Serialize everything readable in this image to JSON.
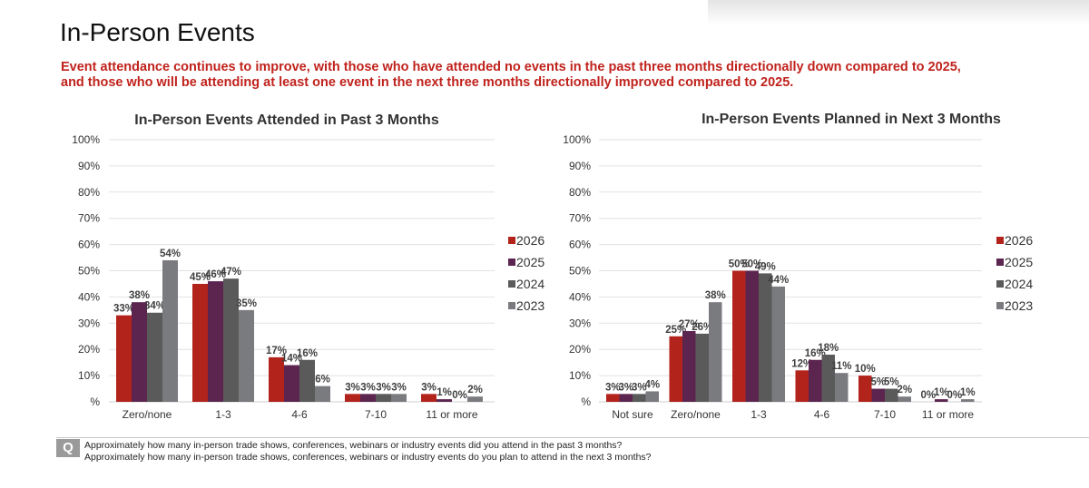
{
  "header": {
    "title": "In-Person Events",
    "subtitle_line1": "Event attendance continues to improve, with those who have attended no events in the past three months directionally down compared to 2025,",
    "subtitle_line2": "and those who will be attending at least one event in the next three months directionally improved compared to 2025."
  },
  "colors": {
    "2026": "#b2231b",
    "2025": "#5c2550",
    "2024": "#5a5a5a",
    "2023": "#7a7b7f",
    "accent": "#c0221c"
  },
  "chart_data": [
    {
      "type": "bar",
      "title": "In-Person Events Attended in Past 3 Months",
      "categories": [
        "Zero/none",
        "1-3",
        "4-6",
        "7-10",
        "11 or more"
      ],
      "series": [
        {
          "name": "2026",
          "values": [
            33,
            45,
            17,
            3,
            3
          ]
        },
        {
          "name": "2025",
          "values": [
            38,
            46,
            14,
            3,
            1
          ]
        },
        {
          "name": "2024",
          "values": [
            34,
            47,
            16,
            3,
            0
          ]
        },
        {
          "name": "2023",
          "values": [
            54,
            35,
            6,
            3,
            2
          ]
        }
      ],
      "yticks": [
        "%",
        "10%",
        "20%",
        "30%",
        "40%",
        "50%",
        "60%",
        "70%",
        "80%",
        "90%",
        "100%"
      ],
      "ylim": [
        0,
        100
      ],
      "xlabel": "",
      "ylabel": "",
      "grid": true,
      "legend": "right"
    },
    {
      "type": "bar",
      "title": "In-Person Events Planned in Next 3 Months",
      "categories": [
        "Not sure",
        "Zero/none",
        "1-3",
        "4-6",
        "7-10",
        "11 or more"
      ],
      "series": [
        {
          "name": "2026",
          "values": [
            3,
            25,
            50,
            12,
            10,
            0
          ]
        },
        {
          "name": "2025",
          "values": [
            3,
            27,
            50,
            16,
            5,
            1
          ]
        },
        {
          "name": "2024",
          "values": [
            3,
            26,
            49,
            18,
            5,
            0
          ]
        },
        {
          "name": "2023",
          "values": [
            4,
            38,
            44,
            11,
            2,
            1
          ]
        }
      ],
      "yticks": [
        "%",
        "10%",
        "20%",
        "30%",
        "40%",
        "50%",
        "60%",
        "70%",
        "80%",
        "90%",
        "100%"
      ],
      "ylim": [
        0,
        100
      ],
      "xlabel": "",
      "ylabel": "",
      "grid": true,
      "legend": "right"
    }
  ],
  "footer": {
    "q_icon": "Q",
    "question1": "Approximately how many in-person trade shows, conferences, webinars or industry events did you attend in the past 3 months?",
    "question2": "Approximately how many in-person trade shows, conferences, webinars or industry events do you plan to attend in the next 3 months?"
  }
}
